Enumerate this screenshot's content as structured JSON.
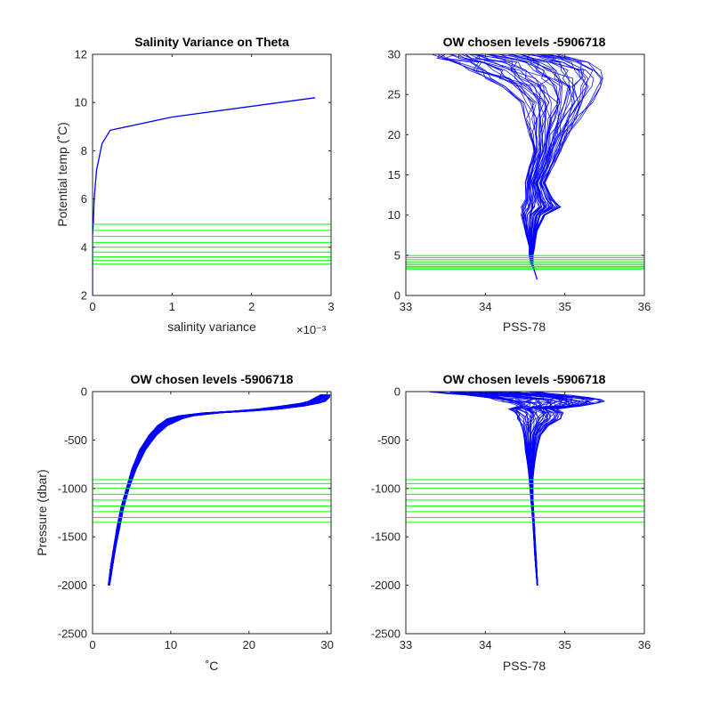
{
  "figure": {
    "background": "#ffffff"
  },
  "colors": {
    "profile": "#0000ff",
    "levels": "#00ff00",
    "axis": "#262626"
  },
  "chart_data": [
    {
      "id": "p1",
      "type": "line",
      "title": "Salinity Variance on Theta",
      "xlabel": "salinity variance",
      "ylabel": "Potential temp (˚C)",
      "xlim": [
        0,
        0.003
      ],
      "ylim": [
        2,
        12
      ],
      "xticks": [
        0,
        0.001,
        0.002,
        0.003
      ],
      "xtick_labels": [
        "0",
        "1",
        "2",
        "3"
      ],
      "x_exponent_label": "×10⁻³",
      "yticks": [
        2,
        4,
        6,
        8,
        10,
        12
      ],
      "ytick_labels": [
        "2",
        "4",
        "6",
        "8",
        "10",
        "12"
      ],
      "series": [
        {
          "x": [
            0,
            0,
            0,
            1e-05,
            2e-05,
            5e-05,
            0.00012,
            0.00022,
            0.001,
            0.0028
          ],
          "y": [
            2.0,
            3.3,
            4.5,
            5.0,
            6.0,
            7.2,
            8.3,
            8.85,
            9.4,
            10.2
          ]
        }
      ],
      "levels": [
        3.3,
        3.45,
        3.6,
        3.8,
        4.0,
        4.2,
        4.45,
        4.7,
        4.95
      ]
    },
    {
      "id": "p2",
      "type": "line",
      "title": "OW chosen levels -5906718",
      "xlabel": "PSS-78",
      "xlim": [
        33,
        36
      ],
      "ylim": [
        0,
        30
      ],
      "xticks": [
        33,
        34,
        35,
        36
      ],
      "xtick_labels": [
        "33",
        "34",
        "35",
        "36"
      ],
      "yticks": [
        0,
        5,
        10,
        15,
        20,
        25,
        30
      ],
      "ytick_labels": [
        "0",
        "5",
        "10",
        "15",
        "20",
        "25",
        "30"
      ],
      "envelope": {
        "y": [
          2,
          3,
          4,
          5,
          6,
          8,
          10,
          11,
          12,
          14,
          16,
          18,
          20,
          22,
          24,
          26,
          27,
          28,
          29,
          29.5,
          30
        ],
        "x_low": [
          34.65,
          34.62,
          34.57,
          34.55,
          34.55,
          34.5,
          34.45,
          34.45,
          34.5,
          34.5,
          34.55,
          34.6,
          34.55,
          34.5,
          34.45,
          34.2,
          34.0,
          33.8,
          33.6,
          33.4,
          33.3
        ],
        "x_high": [
          34.65,
          34.62,
          34.6,
          34.6,
          34.62,
          34.65,
          34.75,
          34.95,
          34.85,
          34.75,
          34.85,
          34.95,
          35.05,
          35.2,
          35.35,
          35.45,
          35.5,
          35.45,
          35.3,
          35.1,
          34.9
        ]
      },
      "levels": [
        3.3,
        3.45,
        3.6,
        3.8,
        4.0,
        4.2,
        4.45,
        4.7,
        4.95
      ]
    },
    {
      "id": "p3",
      "type": "line",
      "title": "OW chosen levels -5906718",
      "xlabel": "˚C",
      "ylabel": "Pressure (dbar)",
      "xlim": [
        0,
        30.5
      ],
      "ylim": [
        -2500,
        0
      ],
      "xticks": [
        0,
        10,
        20,
        30
      ],
      "xtick_labels": [
        "0",
        "10",
        "20",
        "30"
      ],
      "yticks": [
        -2500,
        -2000,
        -1500,
        -1000,
        -500,
        0
      ],
      "ytick_labels": [
        "-2500",
        "-2000",
        "-1500",
        "-1000",
        "-500",
        "0"
      ],
      "envelope": {
        "y": [
          -2000,
          -1800,
          -1600,
          -1400,
          -1200,
          -1000,
          -800,
          -600,
          -450,
          -350,
          -280,
          -250,
          -220,
          -200,
          -180,
          -150,
          -120,
          -100,
          -60,
          -30
        ],
        "x_low": [
          2.0,
          2.3,
          2.7,
          3.1,
          3.6,
          4.3,
          5.0,
          6.0,
          7.2,
          8.3,
          9.5,
          11.0,
          14.0,
          18.0,
          21.0,
          24.0,
          26.5,
          27.5,
          28.5,
          29.2
        ],
        "x_high": [
          2.2,
          2.6,
          3.0,
          3.5,
          4.0,
          4.7,
          5.6,
          6.8,
          8.2,
          9.6,
          11.5,
          13.0,
          16.5,
          20.5,
          24.0,
          27.0,
          29.0,
          29.8,
          30.3,
          30.4
        ]
      },
      "levels": [
        -910,
        -950,
        -1000,
        -1060,
        -1120,
        -1180,
        -1240,
        -1300,
        -1350
      ]
    },
    {
      "id": "p4",
      "type": "line",
      "title": "OW chosen levels -5906718",
      "xlabel": "PSS-78",
      "xlim": [
        33,
        36
      ],
      "ylim": [
        -2500,
        0
      ],
      "xticks": [
        33,
        34,
        35,
        36
      ],
      "xtick_labels": [
        "33",
        "34",
        "35",
        "36"
      ],
      "yticks": [
        -2500,
        -2000,
        -1500,
        -1000,
        -500,
        0
      ],
      "ytick_labels": [
        "-2500",
        "-2000",
        "-1500",
        "-1000",
        "-500",
        "0"
      ],
      "envelope": {
        "y": [
          -2000,
          -1700,
          -1400,
          -1100,
          -900,
          -750,
          -600,
          -450,
          -350,
          -280,
          -220,
          -180,
          -150,
          -120,
          -100,
          -80,
          -60,
          -40,
          -20,
          -5
        ],
        "x_low": [
          34.65,
          34.62,
          34.6,
          34.57,
          34.55,
          34.53,
          34.5,
          34.48,
          34.45,
          34.4,
          34.35,
          34.3,
          34.4,
          34.3,
          34.2,
          34.1,
          34.0,
          33.8,
          33.5,
          33.3
        ],
        "x_high": [
          34.66,
          34.64,
          34.62,
          34.6,
          34.6,
          34.62,
          34.65,
          34.7,
          34.8,
          34.95,
          35.0,
          34.9,
          35.2,
          35.4,
          35.5,
          35.45,
          35.3,
          35.1,
          34.9,
          34.7
        ]
      },
      "levels": [
        -910,
        -950,
        -1000,
        -1060,
        -1120,
        -1180,
        -1240,
        -1300,
        -1350
      ]
    }
  ]
}
